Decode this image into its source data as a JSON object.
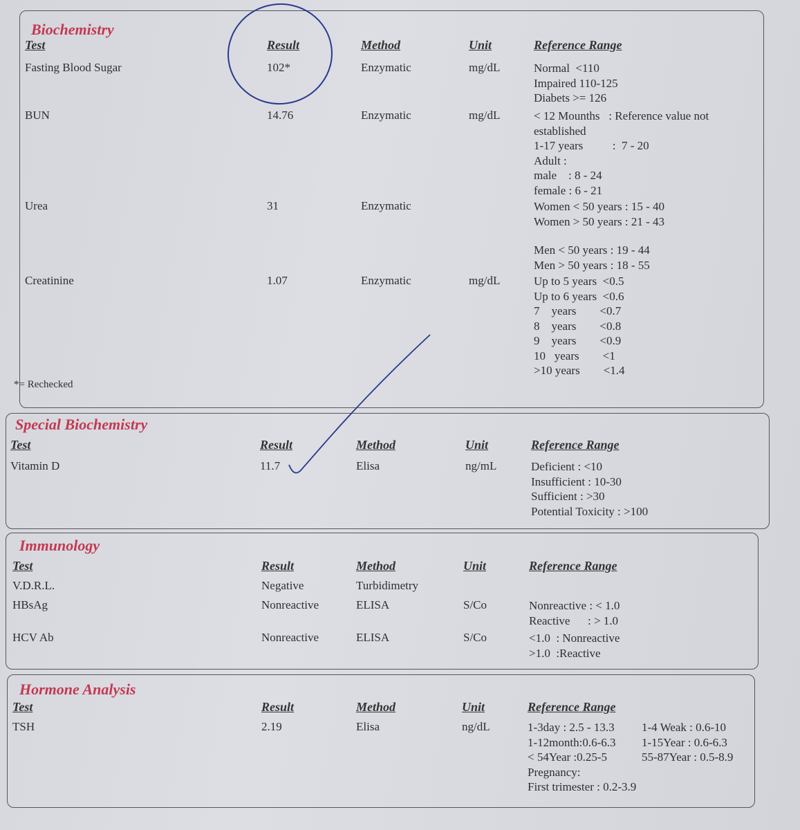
{
  "footnote": "*= Rechecked",
  "headers": {
    "test": "Test",
    "result": "Result",
    "method": "Method",
    "unit": "Unit",
    "reference": "Reference Range"
  },
  "sections": [
    {
      "title": "Biochemistry",
      "tests": [
        {
          "name": "Fasting Blood Sugar",
          "result": "102*",
          "method": "Enzymatic",
          "unit": "mg/dL",
          "reference": [
            "Normal  <110",
            "Impaired 110-125",
            "Diabets >= 126"
          ]
        },
        {
          "name": "BUN",
          "result": "14.76",
          "method": "Enzymatic",
          "unit": "mg/dL",
          "reference": [
            "< 12 Mounths   : Reference value not",
            "established",
            "1-17 years          :  7 - 20",
            "Adult :",
            "male    : 8 - 24",
            "female : 6 - 21"
          ]
        },
        {
          "name": "Urea",
          "result": "31",
          "method": "Enzymatic",
          "unit": "",
          "reference": [
            "Women < 50 years : 15 - 40",
            "Women > 50 years : 21 - 43",
            "",
            "Men < 50 years : 19 - 44",
            "Men > 50 years : 18 - 55"
          ]
        },
        {
          "name": "Creatinine",
          "result": "1.07",
          "method": "Enzymatic",
          "unit": "mg/dL",
          "reference": [
            "Up to 5 years  <0.5",
            "Up to 6 years  <0.6",
            "7    years        <0.7",
            "8    years        <0.8",
            "9    years        <0.9",
            "10   years        <1",
            ">10 years        <1.4"
          ]
        }
      ]
    },
    {
      "title": "Special Biochemistry",
      "tests": [
        {
          "name": "Vitamin D",
          "result": "11.7",
          "method": "Elisa",
          "unit": "ng/mL",
          "reference": [
            "Deficient : <10",
            "Insufficient : 10-30",
            "Sufficient : >30",
            "Potential Toxicity : >100"
          ]
        }
      ]
    },
    {
      "title": "Immunology",
      "tests": [
        {
          "name": "V.D.R.L.",
          "result": "Negative",
          "method": "Turbidimetry",
          "unit": "",
          "reference": []
        },
        {
          "name": "HBsAg",
          "result": "Nonreactive",
          "method": "ELISA",
          "unit": "S/Co",
          "reference": [
            "Nonreactive : < 1.0",
            "Reactive      : > 1.0"
          ]
        },
        {
          "name": "HCV Ab",
          "result": "Nonreactive",
          "method": "ELISA",
          "unit": "S/Co",
          "reference": [
            "<1.0  : Nonreactive",
            ">1.0  :Reactive"
          ]
        }
      ]
    },
    {
      "title": "Hormone Analysis",
      "tests": [
        {
          "name": "TSH",
          "result": "2.19",
          "method": "Elisa",
          "unit": "ng/dL",
          "reference": [
            [
              "1-3day : 2.5 - 13.3",
              "1-4 Weak : 0.6-10"
            ],
            [
              "1-12month:0.6-6.3",
              "  1-15Year : 0.6-6.3"
            ],
            [
              "< 54Year :0.25-5",
              "   55-87Year : 0.5-8.9"
            ],
            "Pregnancy:",
            "First trimester : 0.2-3.9"
          ]
        }
      ]
    }
  ]
}
